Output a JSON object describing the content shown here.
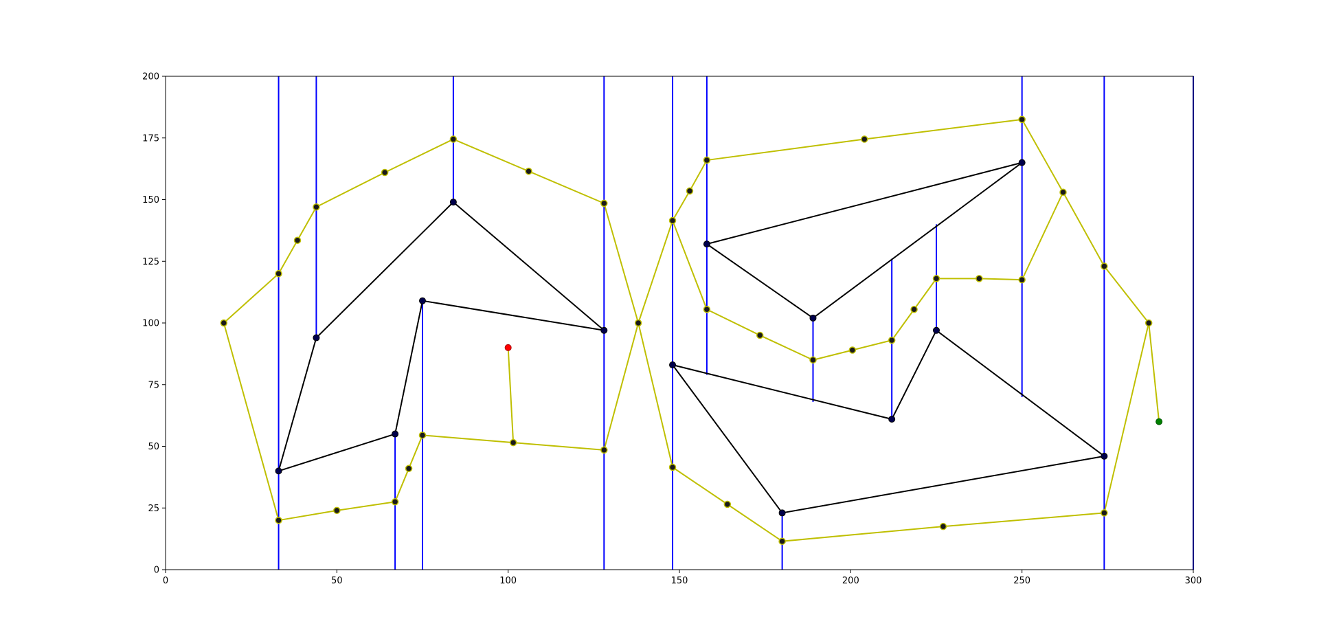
{
  "chart_data": {
    "type": "line",
    "title": "",
    "xlabel": "",
    "ylabel": "",
    "xlim": [
      0,
      300
    ],
    "ylim": [
      0,
      200
    ],
    "x_ticks": [
      0,
      50,
      100,
      150,
      200,
      250,
      300
    ],
    "y_ticks": [
      0,
      25,
      50,
      75,
      100,
      125,
      150,
      175,
      200
    ],
    "grid": false,
    "legend": "none",
    "colors": {
      "obstacle_line": "#000000",
      "obstacle_vertex": "#00004b",
      "path_line": "#bfbf00",
      "path_vertex": "#1a1a1a",
      "vertical_line": "#0000ff",
      "start_point": "#ff0000",
      "goal_point": "#008000"
    },
    "obstacles": [
      [
        [
          33,
          40
        ],
        [
          44,
          94
        ],
        [
          84,
          149
        ],
        [
          128,
          97
        ],
        [
          75,
          109
        ],
        [
          67,
          55
        ]
      ],
      [
        [
          158,
          132
        ],
        [
          189,
          102
        ],
        [
          250,
          165
        ]
      ],
      [
        [
          148,
          83
        ],
        [
          212,
          61
        ],
        [
          225,
          97
        ],
        [
          274,
          46
        ],
        [
          180,
          23
        ]
      ]
    ],
    "vertical_lines": [
      {
        "x": 33,
        "y1": 0,
        "y2": 200
      },
      {
        "x": 44,
        "y1": 94,
        "y2": 200
      },
      {
        "x": 67,
        "y1": 0,
        "y2": 55
      },
      {
        "x": 75,
        "y1": 0,
        "y2": 109
      },
      {
        "x": 84,
        "y1": 149,
        "y2": 200
      },
      {
        "x": 128,
        "y1": 0,
        "y2": 200
      },
      {
        "x": 148,
        "y1": 0,
        "y2": 200
      },
      {
        "x": 158,
        "y1": 79,
        "y2": 200
      },
      {
        "x": 180,
        "y1": 0,
        "y2": 23
      },
      {
        "x": 189,
        "y1": 68,
        "y2": 102
      },
      {
        "x": 212,
        "y1": 61,
        "y2": 126
      },
      {
        "x": 225,
        "y1": 97,
        "y2": 140
      },
      {
        "x": 250,
        "y1": 70,
        "y2": 200
      },
      {
        "x": 274,
        "y1": 0,
        "y2": 200
      },
      {
        "x": 300,
        "y1": 0,
        "y2": 200
      }
    ],
    "roadmap": [
      [
        [
          17,
          100
        ],
        [
          33,
          120
        ],
        [
          38.5,
          133.5
        ],
        [
          44,
          147
        ],
        [
          64,
          161
        ],
        [
          84,
          174.5
        ],
        [
          106,
          161.5
        ],
        [
          128,
          148.5
        ],
        [
          138,
          100
        ],
        [
          148,
          141.5
        ],
        [
          153,
          153.5
        ],
        [
          158,
          166
        ],
        [
          204,
          174.5
        ],
        [
          250,
          182.5
        ],
        [
          262,
          153
        ],
        [
          274,
          123
        ],
        [
          287,
          100
        ]
      ],
      [
        [
          17,
          100
        ],
        [
          33,
          20
        ],
        [
          50,
          24
        ],
        [
          67,
          27.5
        ],
        [
          71,
          41
        ],
        [
          75,
          54.5
        ],
        [
          101.5,
          51.5
        ],
        [
          128,
          48.5
        ],
        [
          138,
          100
        ],
        [
          148,
          41.5
        ],
        [
          164,
          26.5
        ],
        [
          180,
          11.5
        ],
        [
          227,
          17.5
        ],
        [
          274,
          23
        ],
        [
          287,
          100
        ]
      ],
      [
        [
          148,
          141.5
        ],
        [
          158,
          105.5
        ],
        [
          173.5,
          95
        ],
        [
          189,
          85
        ],
        [
          200.5,
          89
        ],
        [
          212,
          93
        ],
        [
          218.5,
          105.5
        ],
        [
          225,
          118
        ],
        [
          237.5,
          118
        ],
        [
          250,
          117.5
        ],
        [
          262,
          153
        ]
      ],
      [
        [
          100,
          90
        ],
        [
          101.5,
          51.5
        ]
      ],
      [
        [
          287,
          100
        ],
        [
          290,
          60
        ]
      ]
    ],
    "start": [
      100,
      90
    ],
    "goal": [
      290,
      60
    ]
  }
}
